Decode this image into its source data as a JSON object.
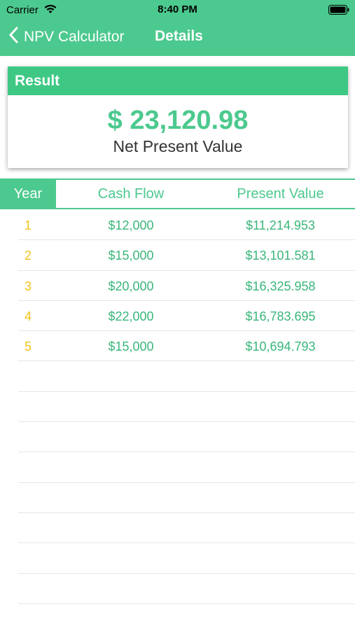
{
  "status_bar": {
    "carrier": "Carrier",
    "time": "8:40 PM"
  },
  "nav": {
    "back_label": "NPV Calculator",
    "title": "Details"
  },
  "result": {
    "header": "Result",
    "value": "$ 23,120.98",
    "label": "Net Present Value"
  },
  "table": {
    "headers": {
      "year": "Year",
      "cash_flow": "Cash Flow",
      "present_value": "Present Value"
    },
    "rows": [
      {
        "year": "1",
        "cash_flow": "$12,000",
        "present_value": "$11,214.953"
      },
      {
        "year": "2",
        "cash_flow": "$15,000",
        "present_value": "$13,101.581"
      },
      {
        "year": "3",
        "cash_flow": "$20,000",
        "present_value": "$16,325.958"
      },
      {
        "year": "4",
        "cash_flow": "$22,000",
        "present_value": "$16,783.695"
      },
      {
        "year": "5",
        "cash_flow": "$15,000",
        "present_value": "$10,694.793"
      },
      {
        "year": "",
        "cash_flow": "",
        "present_value": ""
      },
      {
        "year": "",
        "cash_flow": "",
        "present_value": ""
      },
      {
        "year": "",
        "cash_flow": "",
        "present_value": ""
      },
      {
        "year": "",
        "cash_flow": "",
        "present_value": ""
      },
      {
        "year": "",
        "cash_flow": "",
        "present_value": ""
      },
      {
        "year": "",
        "cash_flow": "",
        "present_value": ""
      },
      {
        "year": "",
        "cash_flow": "",
        "present_value": ""
      },
      {
        "year": "",
        "cash_flow": "",
        "present_value": ""
      }
    ]
  },
  "colors": {
    "accent": "#4cc98e",
    "year_text": "#f2c21b",
    "value_text": "#3ab67a"
  },
  "icons": {
    "wifi": "wifi-icon",
    "battery": "battery-icon",
    "back": "chevron-left-icon"
  }
}
